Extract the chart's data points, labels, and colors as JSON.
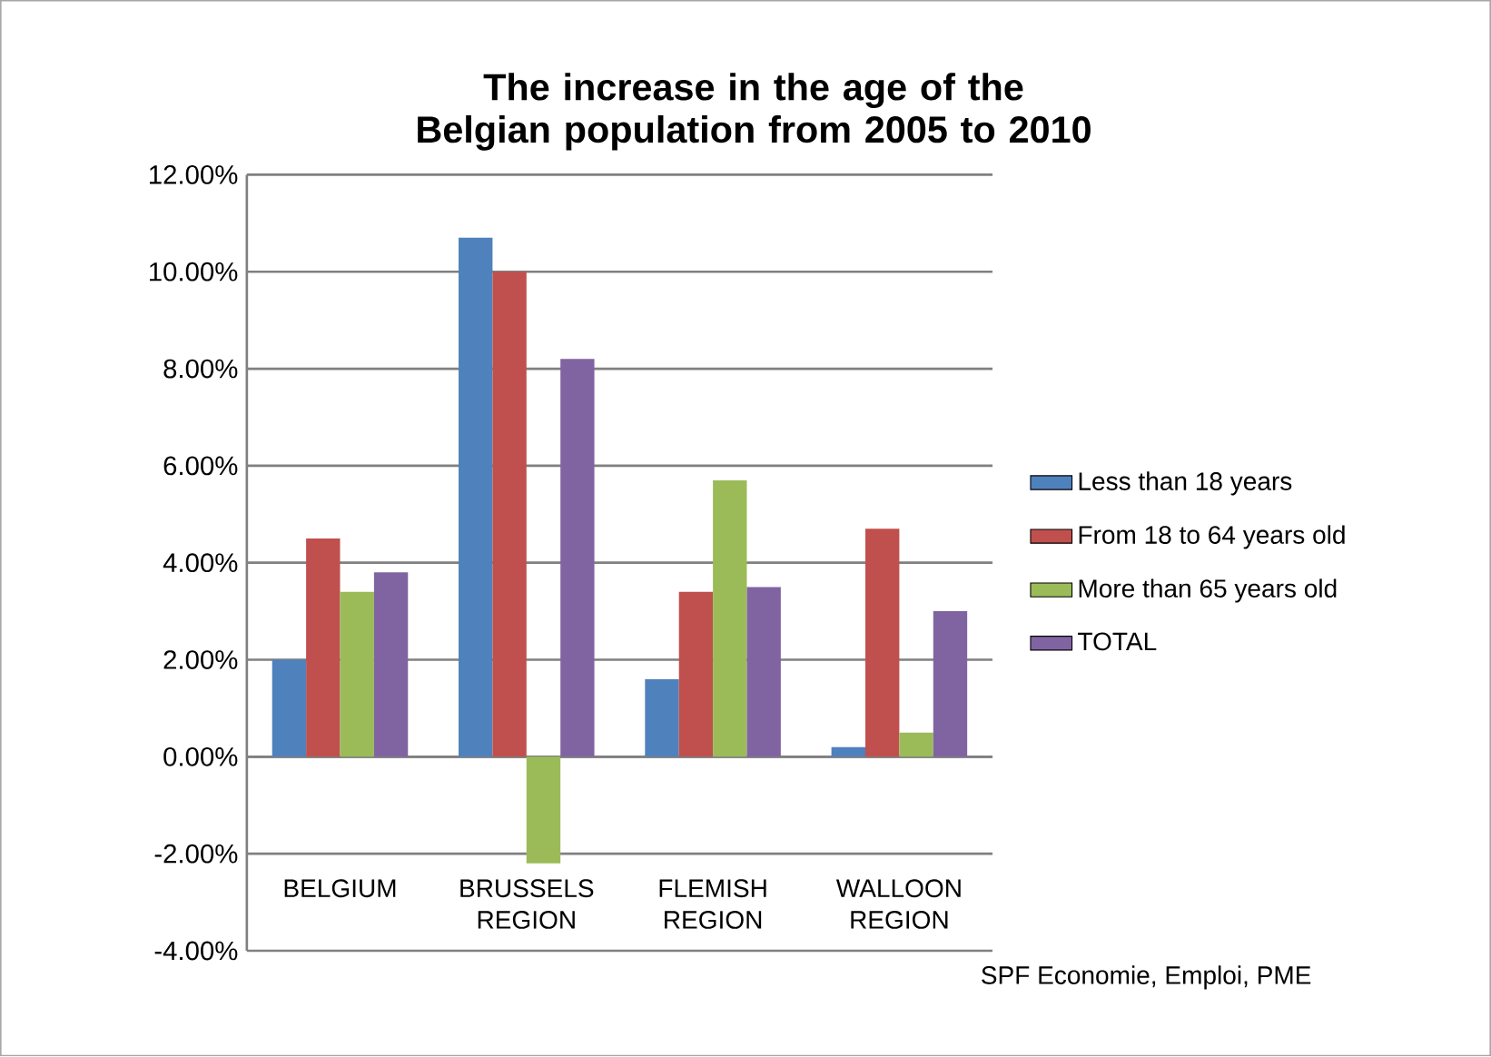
{
  "chart_data": {
    "type": "bar",
    "title": "The increase in the age of the Belgian population from 2005 to 2010",
    "categories": [
      "BELGIUM",
      "BRUSSELS REGION",
      "FLEMISH REGION",
      "WALLOON REGION"
    ],
    "series": [
      {
        "name": "Less than 18 years",
        "color": "#4f81bd",
        "values": [
          2.0,
          10.7,
          1.6,
          0.2
        ]
      },
      {
        "name": "From 18 to 64 years old",
        "color": "#c0504d",
        "values": [
          4.5,
          10.0,
          3.4,
          4.7
        ]
      },
      {
        "name": "More than 65 years old",
        "color": "#9bbb59",
        "values": [
          3.4,
          -2.2,
          5.7,
          0.5
        ]
      },
      {
        "name": "TOTAL",
        "color": "#8064a2",
        "values": [
          3.8,
          8.2,
          3.5,
          3.0
        ]
      }
    ],
    "ylim": [
      -4,
      12
    ],
    "yticks": [
      {
        "value": -4,
        "label": "-4.00%"
      },
      {
        "value": -2,
        "label": "-2.00%"
      },
      {
        "value": 0,
        "label": "0.00%"
      },
      {
        "value": 2,
        "label": "2.00%"
      },
      {
        "value": 4,
        "label": "4.00%"
      },
      {
        "value": 6,
        "label": "6.00%"
      },
      {
        "value": 8,
        "label": "8.00%"
      },
      {
        "value": 10,
        "label": "10.00%"
      },
      {
        "value": 12,
        "label": "12.00%"
      }
    ],
    "grid": "y",
    "legend": "right",
    "annotations": [
      "SPF Economie, Emploi, PME"
    ]
  }
}
